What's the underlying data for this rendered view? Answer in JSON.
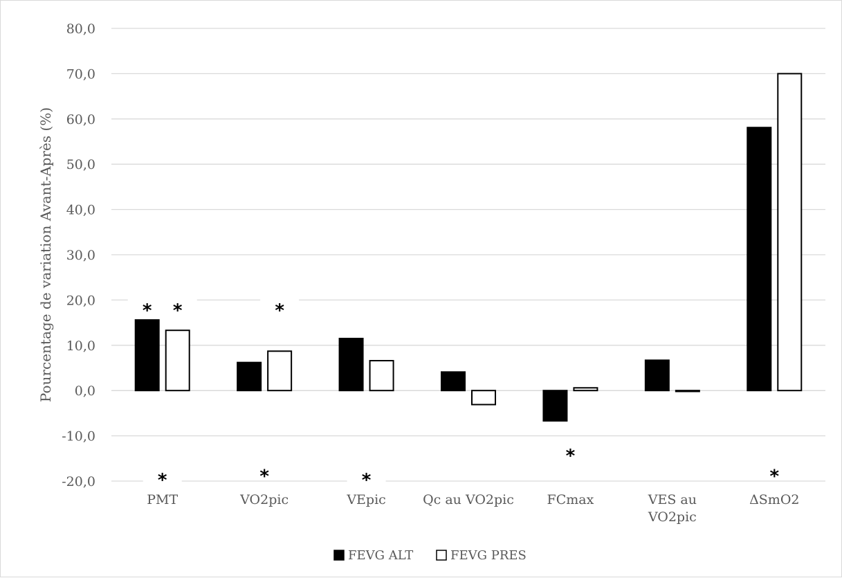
{
  "chart_data": {
    "type": "bar",
    "ylabel": "Pourcentage de variation Avant-Après (%)",
    "xlabel": "",
    "ylim": [
      -20,
      80
    ],
    "yticks": [
      -20,
      -10,
      0,
      10,
      20,
      30,
      40,
      50,
      60,
      70,
      80
    ],
    "ytick_labels": [
      "-20,0",
      "-10,0",
      "0,0",
      "10,0",
      "20,0",
      "30,0",
      "40,0",
      "50,0",
      "60,0",
      "70,0",
      "80,0"
    ],
    "grid": true,
    "legend_position": "bottom",
    "categories": [
      [
        "PMT"
      ],
      [
        "VO2pic"
      ],
      [
        "VEpic"
      ],
      [
        "Qc au VO2pic"
      ],
      [
        "FCmax"
      ],
      [
        "VES au",
        "VO2pic"
      ],
      [
        "ΔSmO2"
      ]
    ],
    "series": [
      {
        "name": "FEVG ALT",
        "color": "#000000",
        "values": [
          15.6,
          6.2,
          11.5,
          4.1,
          -6.7,
          6.7,
          58.1
        ]
      },
      {
        "name": "FEVG PRES",
        "color": "#ffffff",
        "values": [
          13.3,
          8.7,
          6.6,
          -3.1,
          0.6,
          -0.2,
          70.0
        ]
      }
    ],
    "annotations": [
      {
        "text": "*",
        "category": 0,
        "series": 0,
        "y": 18.8
      },
      {
        "text": "*",
        "category": 0,
        "series": 1,
        "y": 18.8
      },
      {
        "text": "*",
        "category": 1,
        "series": 1,
        "y": 18.8
      },
      {
        "text": "*",
        "category": 0,
        "series": null,
        "y": -18.6
      },
      {
        "text": "*",
        "category": 1,
        "series": null,
        "y": -17.8
      },
      {
        "text": "*",
        "category": 2,
        "series": null,
        "y": -18.6
      },
      {
        "text": "*",
        "category": 4,
        "series": null,
        "y": -13.3
      },
      {
        "text": "*",
        "category": 6,
        "series": null,
        "y": -17.8
      }
    ]
  }
}
